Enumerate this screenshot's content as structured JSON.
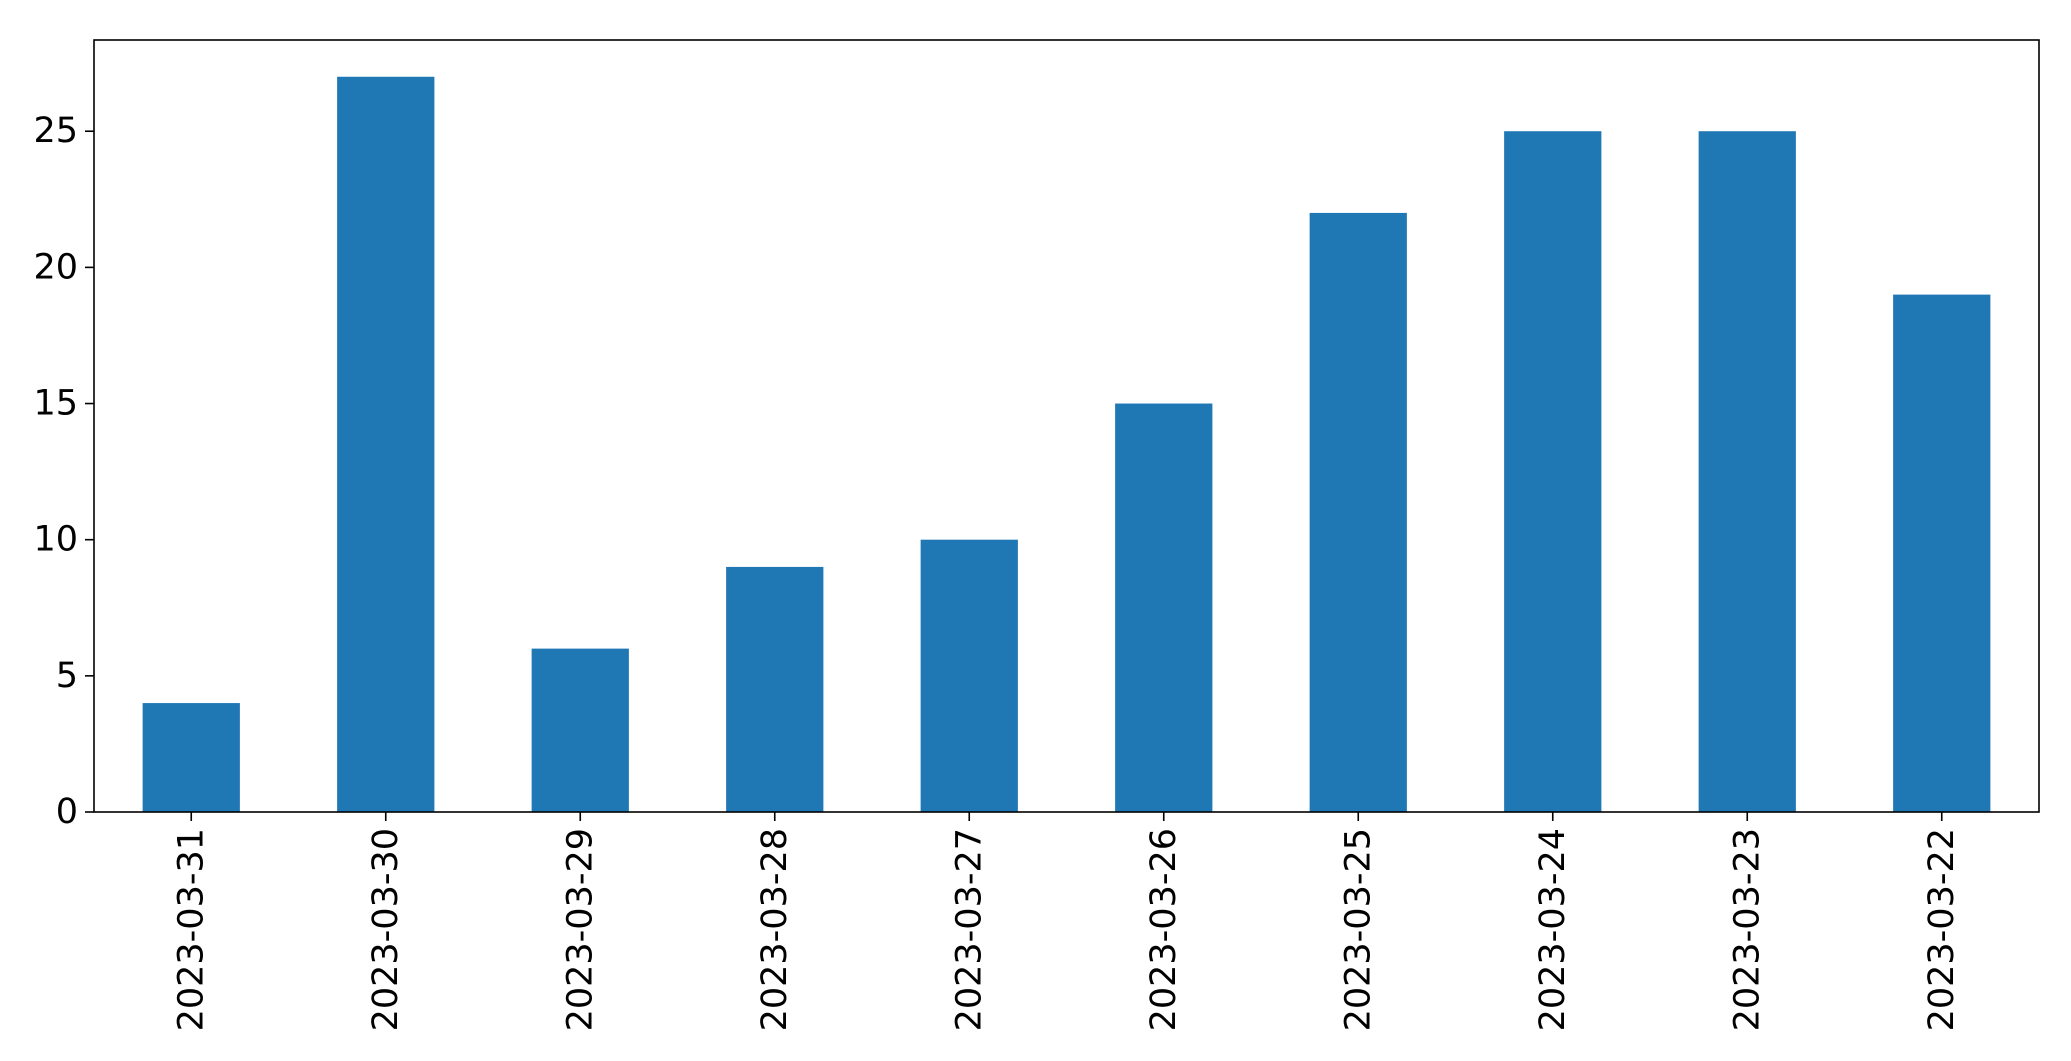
{
  "chart_data": {
    "type": "bar",
    "categories": [
      "2023-03-31",
      "2023-03-30",
      "2023-03-29",
      "2023-03-28",
      "2023-03-27",
      "2023-03-26",
      "2023-03-25",
      "2023-03-24",
      "2023-03-23",
      "2023-03-22"
    ],
    "values": [
      4,
      27,
      6,
      9,
      10,
      15,
      22,
      25,
      25,
      19
    ],
    "title": "",
    "xlabel": "",
    "ylabel": "",
    "ylim": [
      0,
      28.35
    ],
    "yticks": [
      0,
      5,
      10,
      15,
      20,
      25
    ],
    "grid": false,
    "legend": "none",
    "bar_color": "#1f77b4",
    "xtick_rotation": "vertical"
  }
}
